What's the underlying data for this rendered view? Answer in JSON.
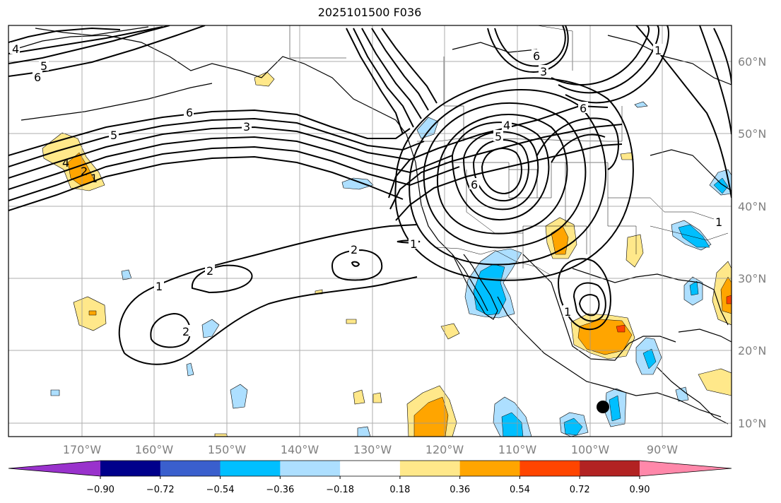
{
  "title": "2025101500 F036",
  "map": {
    "lon_labels": [
      "170°W",
      "160°W",
      "150°W",
      "140°W",
      "130°W",
      "120°W",
      "110°W",
      "100°W",
      "90°W"
    ],
    "lat_labels": [
      "60°N",
      "50°N",
      "40°N",
      "30°N",
      "20°N",
      "10°N"
    ],
    "contour_labels": [
      "4",
      "5",
      "6",
      "6",
      "5",
      "3",
      "4",
      "2",
      "1",
      "2",
      "1",
      "2",
      "2",
      "1",
      "6",
      "5",
      "4",
      "6",
      "3",
      "6",
      "1",
      "1",
      "1"
    ],
    "marker": "storm-center-dot"
  },
  "colorbar": {
    "ticks": [
      "−0.90",
      "−0.72",
      "−0.54",
      "−0.36",
      "−0.18",
      "0.18",
      "0.36",
      "0.54",
      "0.72",
      "0.90"
    ],
    "colors": [
      "#9932CC",
      "#00008B",
      "#3A5FCD",
      "#00BFFF",
      "#ADDFFF",
      "#FFFFFF",
      "#FFE88A",
      "#FFA500",
      "#FF4500",
      "#B22222",
      "#FF88AA"
    ]
  }
}
